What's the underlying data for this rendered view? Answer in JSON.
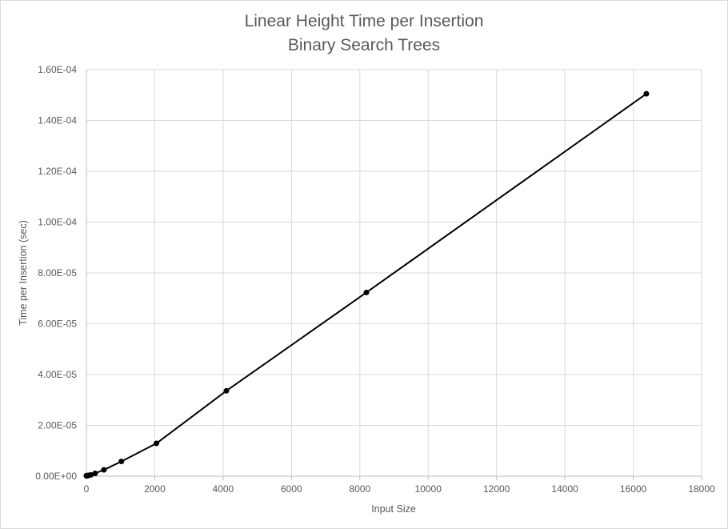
{
  "chart_data": {
    "type": "scatter",
    "title_lines": [
      "Linear Height Time per Insertion",
      "Binary Search Trees"
    ],
    "xlabel": "Input Size",
    "ylabel": "Time per Insertion (sec)",
    "xlim": [
      0,
      18000
    ],
    "ylim": [
      0,
      0.00016
    ],
    "x_ticks": [
      "0",
      "2000",
      "4000",
      "6000",
      "8000",
      "10000",
      "12000",
      "14000",
      "16000",
      "18000"
    ],
    "y_ticks": [
      "0.00E+00",
      "2.00E-05",
      "4.00E-05",
      "6.00E-05",
      "8.00E-05",
      "1.00E-04",
      "1.20E-04",
      "1.40E-04",
      "1.60E-04"
    ],
    "grid": true,
    "legend": "none",
    "series": [
      {
        "style": "lines-and-markers",
        "color": "#000000",
        "x": [
          1,
          2,
          4,
          8,
          16,
          32,
          64,
          128,
          256,
          512,
          1024,
          2048,
          4096,
          8192,
          16384
        ],
        "y": [
          2e-07,
          2e-07,
          2e-07,
          2e-07,
          2e-07,
          2e-07,
          3e-07,
          5e-07,
          1.1e-06,
          2.5e-06,
          5.8e-06,
          1.29e-05,
          3.36e-05,
          7.23e-05,
          0.0001505
        ]
      }
    ]
  }
}
